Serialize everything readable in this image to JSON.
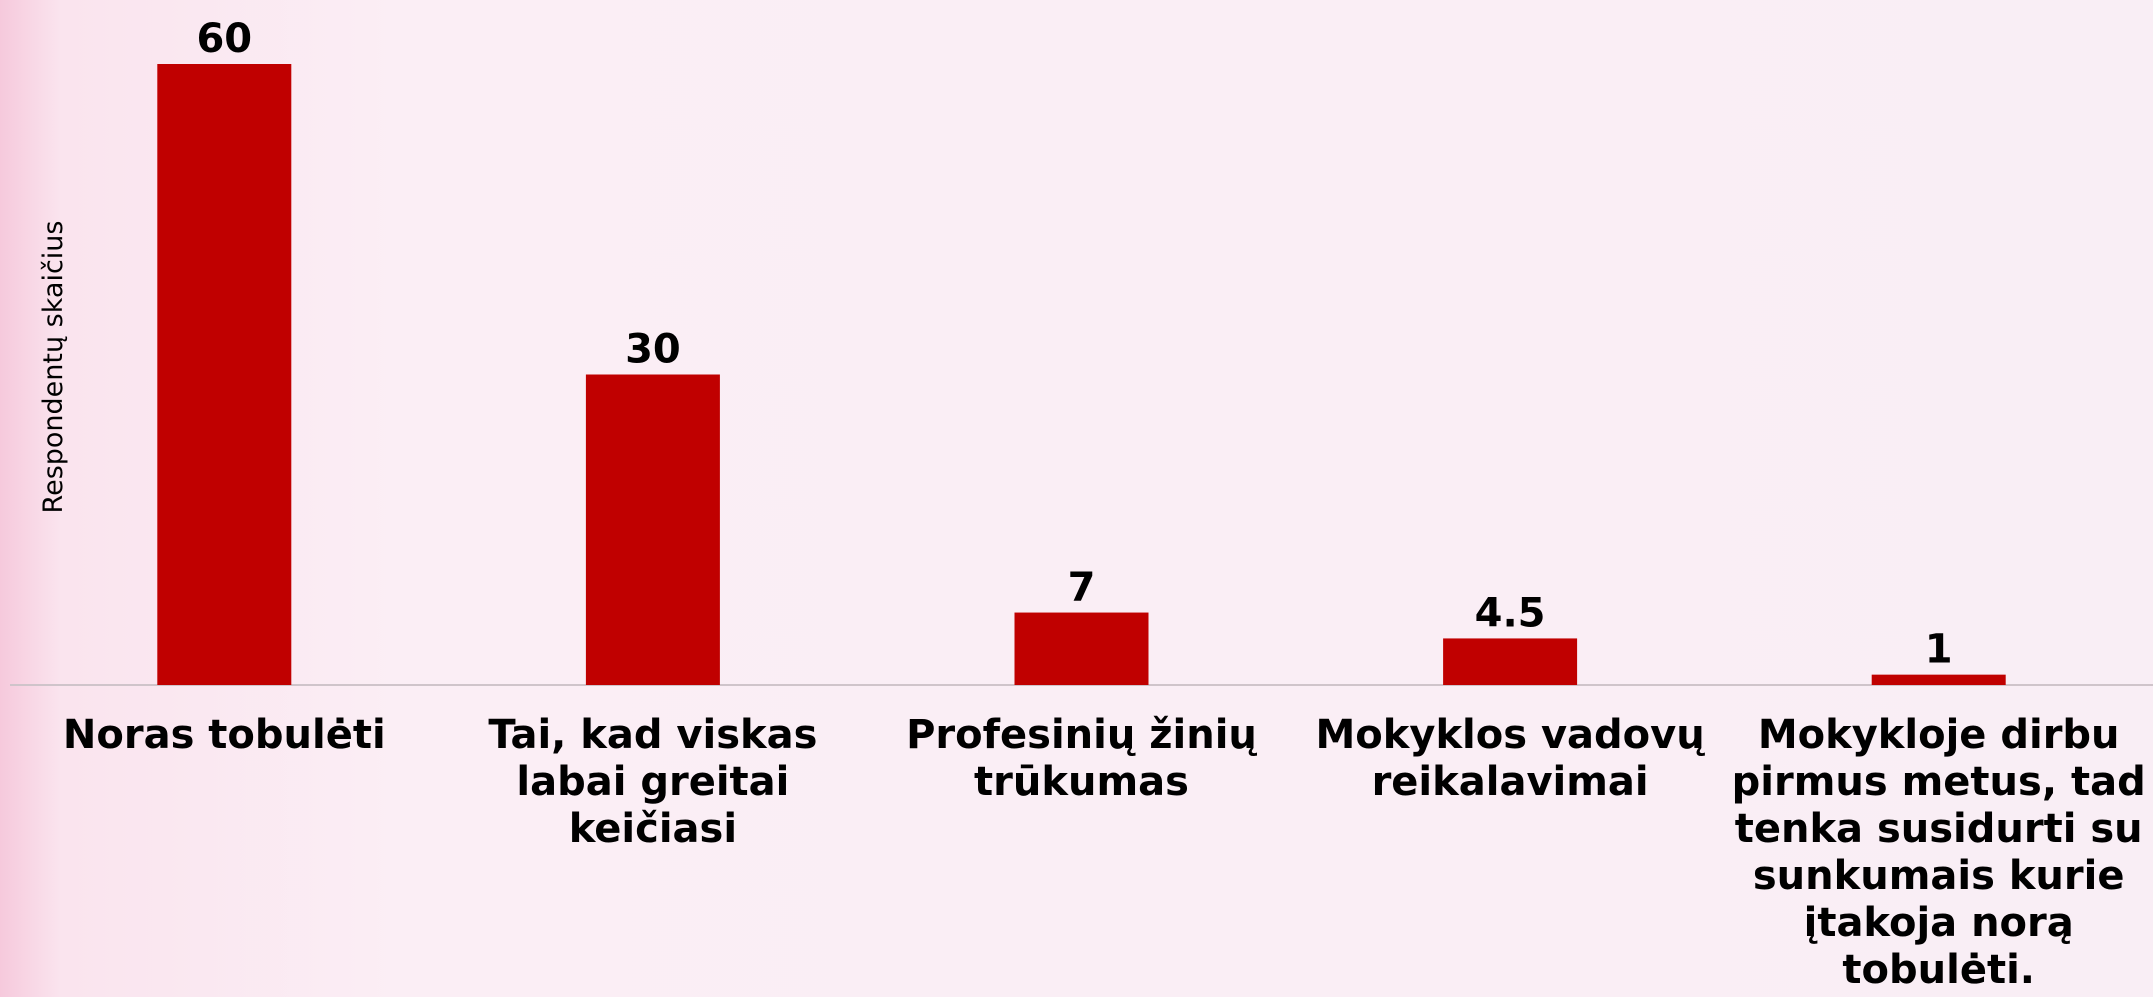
{
  "chart_data": {
    "type": "bar",
    "y_label": "Respondentų skaičius",
    "categories": [
      "Noras tobulėti",
      "Tai, kad viskas labai greitai keičiasi",
      "Profesinių žinių trūkumas",
      "Mokyklos vadovų reikalavimai",
      "Mokykloje dirbu pirmus metus, tad tenka susidurti su sunkumais kurie įtakoja norą tobulėti."
    ],
    "values": [
      60,
      30,
      7,
      4.5,
      1
    ],
    "color": "#c00000",
    "ylim": [
      0,
      60
    ]
  }
}
